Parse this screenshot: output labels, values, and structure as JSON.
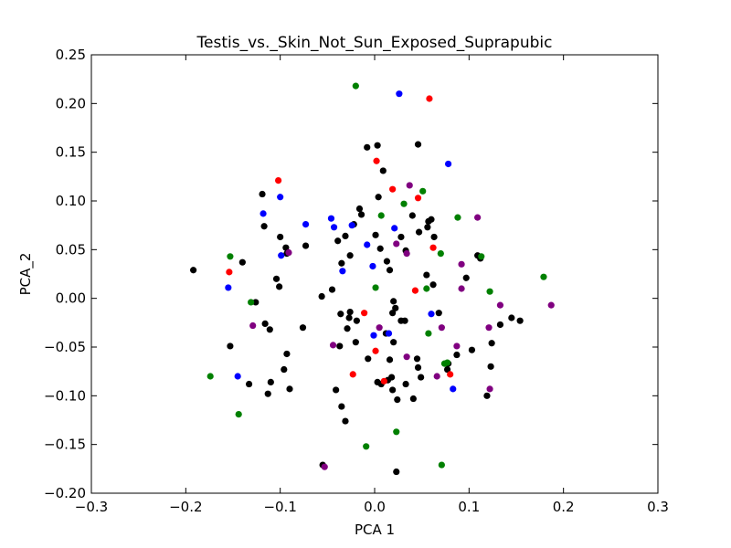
{
  "chart_data": {
    "type": "scatter",
    "title": "Testis_vs._Skin_Not_Sun_Exposed_Suprapubic",
    "xlabel": "PCA 1",
    "ylabel": "PCA_2",
    "xlim": [
      -0.3,
      0.3
    ],
    "ylim": [
      -0.2,
      0.25
    ],
    "xticks": [
      -0.3,
      -0.2,
      -0.1,
      0.0,
      0.1,
      0.2,
      0.3
    ],
    "xtick_labels": [
      "−0.3",
      "−0.2",
      "−0.1",
      "0.0",
      "0.1",
      "0.2",
      "0.3"
    ],
    "yticks": [
      -0.2,
      -0.15,
      -0.1,
      -0.05,
      0.0,
      0.05,
      0.1,
      0.15,
      0.2,
      0.25
    ],
    "ytick_labels": [
      "−0.20",
      "−0.15",
      "−0.10",
      "−0.05",
      "0.00",
      "0.05",
      "0.10",
      "0.15",
      "0.20",
      "0.25"
    ],
    "grid": false,
    "legend": "none",
    "series": [
      {
        "color": "#000000",
        "points": [
          [
            -0.192,
            0.029
          ],
          [
            -0.14,
            0.037
          ],
          [
            -0.153,
            -0.049
          ],
          [
            -0.119,
            0.107
          ],
          [
            -0.117,
            0.074
          ],
          [
            -0.126,
            -0.004
          ],
          [
            -0.116,
            -0.026
          ],
          [
            -0.1,
            0.063
          ],
          [
            -0.094,
            0.052
          ],
          [
            -0.093,
            0.046
          ],
          [
            -0.101,
            0.012
          ],
          [
            -0.104,
            0.02
          ],
          [
            -0.11,
            -0.086
          ],
          [
            -0.113,
            -0.098
          ],
          [
            -0.09,
            -0.093
          ],
          [
            -0.096,
            -0.073
          ],
          [
            -0.093,
            -0.057
          ],
          [
            -0.111,
            -0.032
          ],
          [
            -0.133,
            -0.088
          ],
          [
            -0.076,
            -0.03
          ],
          [
            -0.073,
            0.054
          ],
          [
            -0.056,
            0.002
          ],
          [
            -0.045,
            0.009
          ],
          [
            -0.039,
            0.059
          ],
          [
            -0.031,
            0.064
          ],
          [
            -0.022,
            0.076
          ],
          [
            -0.014,
            0.086
          ],
          [
            -0.016,
            0.092
          ],
          [
            -0.035,
            0.036
          ],
          [
            -0.026,
            0.044
          ],
          [
            -0.036,
            -0.016
          ],
          [
            -0.027,
            -0.02
          ],
          [
            -0.029,
            -0.031
          ],
          [
            -0.026,
            -0.014
          ],
          [
            -0.019,
            -0.023
          ],
          [
            -0.037,
            -0.049
          ],
          [
            -0.02,
            -0.045
          ],
          [
            -0.041,
            -0.094
          ],
          [
            -0.035,
            -0.111
          ],
          [
            -0.031,
            -0.126
          ],
          [
            -0.008,
            0.155
          ],
          [
            0.003,
            0.157
          ],
          [
            0.009,
            0.131
          ],
          [
            0.004,
            0.104
          ],
          [
            0.001,
            0.065
          ],
          [
            0.006,
            0.051
          ],
          [
            0.013,
            0.038
          ],
          [
            0.016,
            0.029
          ],
          [
            0.02,
            -0.003
          ],
          [
            0.019,
            -0.015
          ],
          [
            0.028,
            -0.023
          ],
          [
            0.012,
            -0.036
          ],
          [
            0.02,
            -0.045
          ],
          [
            -0.007,
            -0.062
          ],
          [
            0.016,
            -0.063
          ],
          [
            0.018,
            -0.081
          ],
          [
            0.003,
            -0.086
          ],
          [
            0.007,
            -0.088
          ],
          [
            0.014,
            -0.084
          ],
          [
            0.019,
            -0.094
          ],
          [
            0.024,
            -0.104
          ],
          [
            0.033,
            -0.088
          ],
          [
            0.041,
            -0.103
          ],
          [
            0.046,
            -0.071
          ],
          [
            0.049,
            -0.081
          ],
          [
            0.045,
            -0.062
          ],
          [
            0.032,
            -0.023
          ],
          [
            0.028,
            0.063
          ],
          [
            0.033,
            0.049
          ],
          [
            0.04,
            0.085
          ],
          [
            0.046,
            0.158
          ],
          [
            0.047,
            0.068
          ],
          [
            0.056,
            0.073
          ],
          [
            0.057,
            0.079
          ],
          [
            0.06,
            0.081
          ],
          [
            0.055,
            0.024
          ],
          [
            0.062,
            0.014
          ],
          [
            0.063,
            0.063
          ],
          [
            0.068,
            -0.015
          ],
          [
            0.078,
            -0.067
          ],
          [
            0.077,
            -0.073
          ],
          [
            0.087,
            -0.058
          ],
          [
            0.097,
            0.021
          ],
          [
            0.103,
            -0.053
          ],
          [
            0.109,
            0.044
          ],
          [
            0.112,
            0.041
          ],
          [
            0.119,
            -0.1
          ],
          [
            0.123,
            -0.07
          ],
          [
            0.124,
            -0.046
          ],
          [
            0.133,
            -0.027
          ],
          [
            0.145,
            -0.02
          ],
          [
            0.154,
            -0.023
          ],
          [
            0.023,
            -0.178
          ],
          [
            -0.055,
            -0.171
          ],
          [
            0.022,
            -0.01
          ]
        ]
      },
      {
        "color": "#0000ff",
        "points": [
          [
            0.026,
            0.21
          ],
          [
            0.078,
            0.138
          ],
          [
            -0.1,
            0.104
          ],
          [
            -0.118,
            0.087
          ],
          [
            -0.073,
            0.076
          ],
          [
            -0.046,
            0.082
          ],
          [
            -0.043,
            0.073
          ],
          [
            -0.024,
            0.075
          ],
          [
            0.021,
            0.072
          ],
          [
            -0.008,
            0.055
          ],
          [
            -0.099,
            0.044
          ],
          [
            -0.034,
            0.028
          ],
          [
            -0.002,
            0.033
          ],
          [
            -0.155,
            0.011
          ],
          [
            0.06,
            -0.016
          ],
          [
            -0.001,
            -0.038
          ],
          [
            0.015,
            -0.036
          ],
          [
            -0.145,
            -0.08
          ],
          [
            0.083,
            -0.093
          ]
        ]
      },
      {
        "color": "#ff0000",
        "points": [
          [
            0.058,
            0.205
          ],
          [
            0.002,
            0.141
          ],
          [
            -0.102,
            0.121
          ],
          [
            0.019,
            0.112
          ],
          [
            0.046,
            0.103
          ],
          [
            0.062,
            0.052
          ],
          [
            -0.154,
            0.027
          ],
          [
            0.043,
            0.008
          ],
          [
            -0.011,
            -0.015
          ],
          [
            0.001,
            -0.054
          ],
          [
            -0.023,
            -0.078
          ],
          [
            0.08,
            -0.078
          ],
          [
            0.01,
            -0.085
          ]
        ]
      },
      {
        "color": "#008000",
        "points": [
          [
            -0.02,
            0.218
          ],
          [
            0.051,
            0.11
          ],
          [
            0.031,
            0.097
          ],
          [
            0.007,
            0.085
          ],
          [
            0.088,
            0.083
          ],
          [
            0.07,
            0.046
          ],
          [
            0.113,
            0.043
          ],
          [
            -0.153,
            0.043
          ],
          [
            0.179,
            0.022
          ],
          [
            0.001,
            0.011
          ],
          [
            0.055,
            0.01
          ],
          [
            0.122,
            0.007
          ],
          [
            -0.131,
            -0.004
          ],
          [
            0.057,
            -0.036
          ],
          [
            -0.174,
            -0.08
          ],
          [
            0.074,
            -0.067
          ],
          [
            0.077,
            -0.066
          ],
          [
            -0.144,
            -0.119
          ],
          [
            0.023,
            -0.137
          ],
          [
            -0.009,
            -0.152
          ],
          [
            0.071,
            -0.171
          ]
        ]
      },
      {
        "color": "#800080",
        "points": [
          [
            0.037,
            0.116
          ],
          [
            0.109,
            0.083
          ],
          [
            0.023,
            0.056
          ],
          [
            0.034,
            0.046
          ],
          [
            -0.091,
            0.047
          ],
          [
            0.092,
            0.035
          ],
          [
            0.092,
            0.01
          ],
          [
            0.133,
            -0.007
          ],
          [
            0.187,
            -0.007
          ],
          [
            -0.129,
            -0.028
          ],
          [
            0.005,
            -0.03
          ],
          [
            0.071,
            -0.03
          ],
          [
            0.121,
            -0.03
          ],
          [
            -0.044,
            -0.048
          ],
          [
            0.087,
            -0.049
          ],
          [
            0.034,
            -0.06
          ],
          [
            0.066,
            -0.08
          ],
          [
            0.122,
            -0.093
          ],
          [
            -0.053,
            -0.173
          ]
        ]
      }
    ]
  }
}
